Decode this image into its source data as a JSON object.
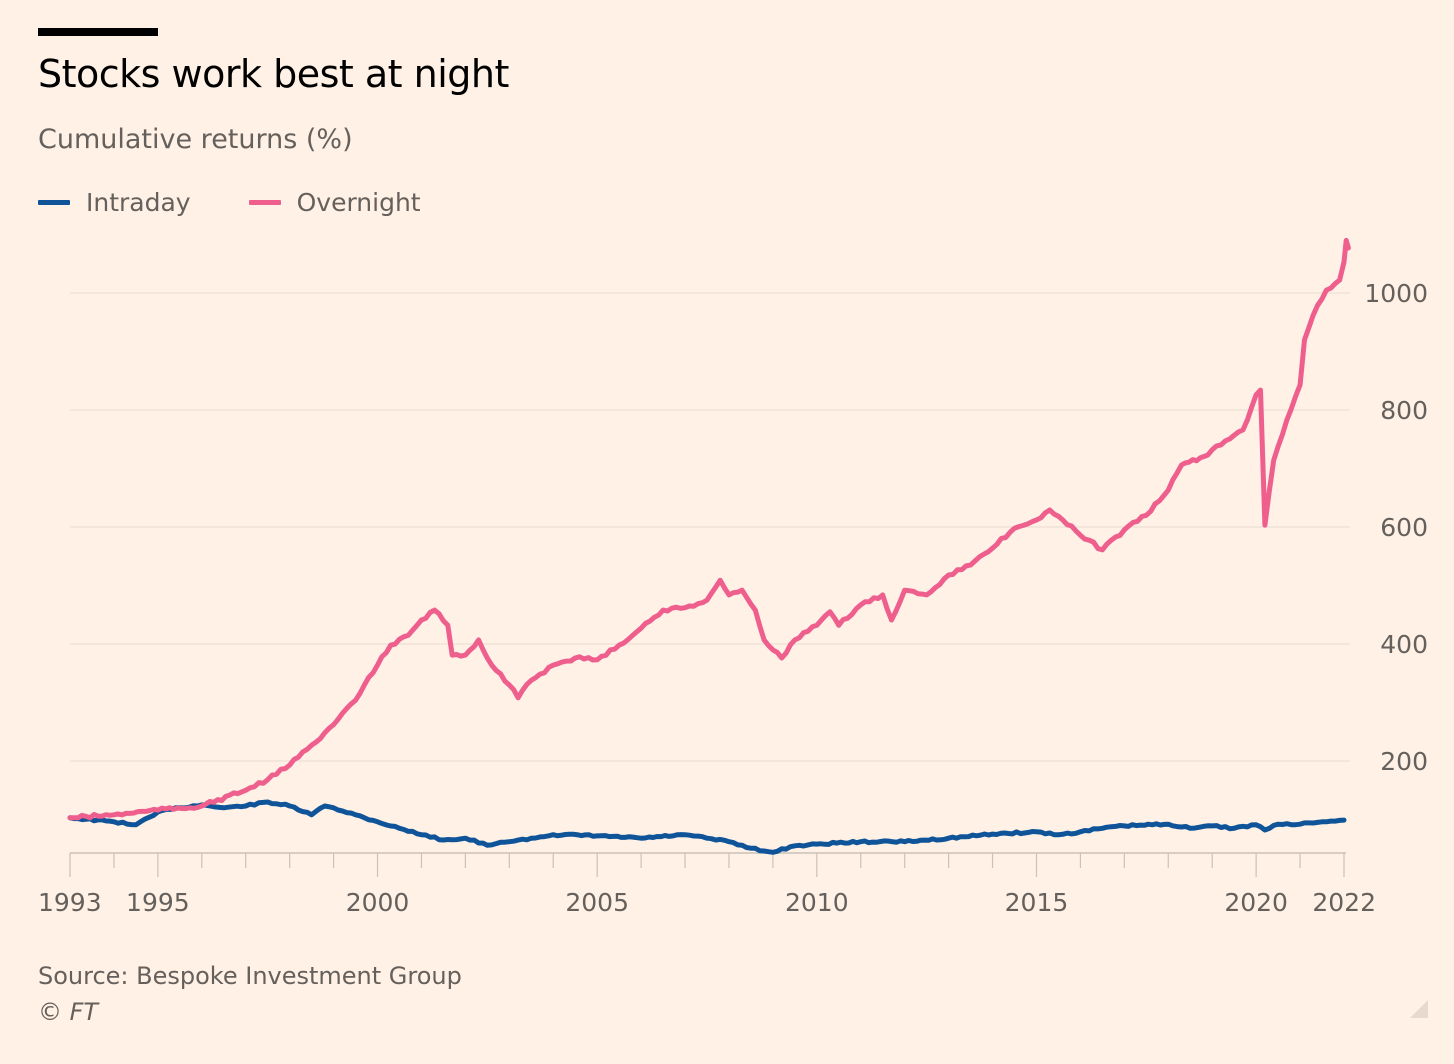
{
  "header": {
    "title": "Stocks work best at night",
    "subtitle": "Cumulative returns (%)"
  },
  "footer": {
    "source": "Source: Bespoke Investment Group",
    "copyright": "© FT"
  },
  "colors": {
    "background": "#fff1e5",
    "intraday": "#0f5499",
    "overnight": "#ee5f8e",
    "grid": "#e9dcd1",
    "text": "#66605c"
  },
  "chart_data": {
    "type": "line",
    "title": "Stocks work best at night",
    "ylabel": "Cumulative returns (%)",
    "xlim": [
      1993,
      2022.1
    ],
    "ylim": [
      43,
      1100
    ],
    "y_ticks": [
      200,
      400,
      600,
      800,
      1000
    ],
    "y_axis_side": "right",
    "x_tick_labels": [
      "1993",
      "1995",
      "2000",
      "2005",
      "2010",
      "2015",
      "2020",
      "2022"
    ],
    "x_tick_values": [
      1993,
      1995,
      2000,
      2005,
      2010,
      2015,
      2020,
      2022
    ],
    "grid": "horizontal",
    "legend_placement": "top-left",
    "series": [
      {
        "name": "Intraday",
        "color": "#0f5499",
        "x": [
          1993,
          1994,
          1994.5,
          1995,
          1995.5,
          1996,
          1996.5,
          1997,
          1997.5,
          1998,
          1998.5,
          1998.8,
          1999,
          1999.5,
          2000,
          2000.5,
          2001,
          2001.5,
          2002,
          2002.5,
          2003,
          2003.5,
          2004,
          2005,
          2006,
          2007,
          2007.5,
          2008,
          2008.5,
          2009,
          2009.5,
          2010,
          2011,
          2012,
          2013,
          2014,
          2015,
          2015.5,
          2016,
          2016.5,
          2017,
          2018,
          2018.5,
          2019,
          2019.5,
          2020,
          2020.2,
          2020.5,
          2021,
          2021.5,
          2022
        ],
        "values": [
          103,
          96,
          91,
          113,
          120,
          125,
          120,
          123,
          130,
          123,
          108,
          123,
          120,
          108,
          96,
          85,
          74,
          65,
          68,
          56,
          62,
          68,
          74,
          72,
          68,
          74,
          68,
          62,
          51,
          44,
          55,
          58,
          62,
          62,
          68,
          75,
          79,
          74,
          79,
          85,
          89,
          92,
          85,
          89,
          85,
          91,
          82,
          92,
          92,
          96,
          99
        ]
      },
      {
        "name": "Overnight",
        "color": "#ee5f8e",
        "x": [
          1993,
          1994,
          1995,
          1996,
          1997,
          1997.5,
          1998,
          1998.5,
          1999,
          1999.5,
          2000,
          2000.3,
          2000.7,
          2001,
          2001.3,
          2001.6,
          2001.7,
          2002,
          2002.3,
          2002.6,
          2003,
          2003.2,
          2003.5,
          2004,
          2004.5,
          2005,
          2005.5,
          2006,
          2006.5,
          2007,
          2007.5,
          2007.8,
          2008,
          2008.3,
          2008.6,
          2008.8,
          2009,
          2009.2,
          2009.5,
          2010,
          2010.3,
          2010.5,
          2011,
          2011.5,
          2011.7,
          2012,
          2012.5,
          2013,
          2013.5,
          2014,
          2014.5,
          2015,
          2015.3,
          2015.6,
          2016,
          2016.5,
          2017,
          2017.5,
          2018,
          2018.3,
          2018.9,
          2019,
          2019.5,
          2019.7,
          2020,
          2020.1,
          2020.2,
          2020.4,
          2020.7,
          2021,
          2021.1,
          2021.4,
          2021.6,
          2021.9,
          2022,
          2022.05,
          2022.1
        ],
        "values": [
          103,
          108,
          116,
          123,
          150,
          168,
          193,
          227,
          262,
          304,
          364,
          398,
          415,
          441,
          458,
          432,
          381,
          381,
          407,
          364,
          330,
          308,
          338,
          364,
          376,
          373,
          398,
          427,
          458,
          462,
          475,
          509,
          484,
          492,
          458,
          407,
          390,
          376,
          407,
          432,
          455,
          432,
          467,
          484,
          441,
          492,
          484,
          518,
          535,
          564,
          598,
          612,
          629,
          612,
          586,
          561,
          595,
          620,
          663,
          706,
          723,
          732,
          757,
          766,
          826,
          834,
          603,
          714,
          783,
          843,
          920,
          979,
          1005,
          1022,
          1053,
          1090,
          1077
        ]
      }
    ]
  }
}
